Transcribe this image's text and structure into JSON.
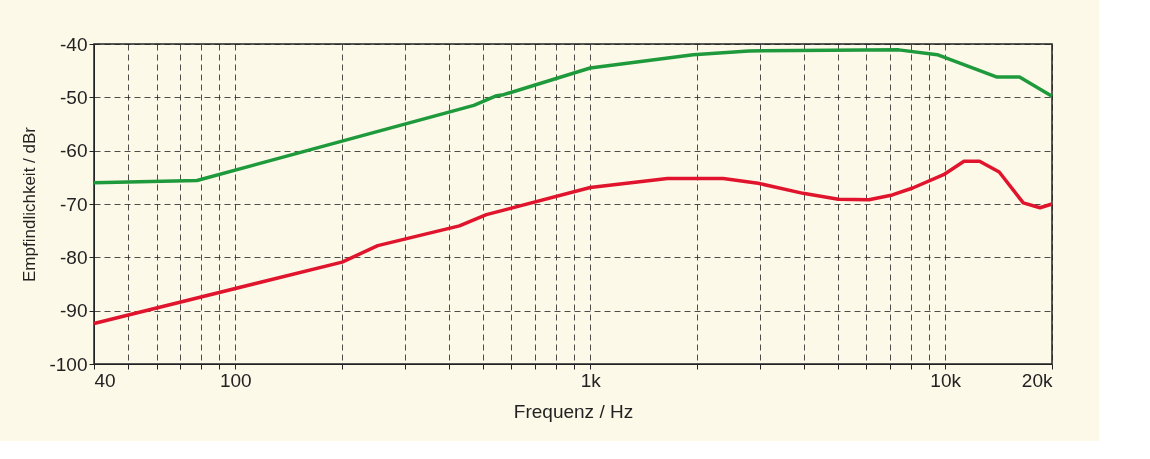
{
  "chart_data": {
    "type": "line",
    "xlabel": "Frequenz / Hz",
    "ylabel": "Empfindlichkeit / dBr",
    "log": "x",
    "xlim": [
      40,
      20000
    ],
    "ylim": [
      -100,
      -40
    ],
    "xticks": [
      40,
      {
        "value": 50,
        "label": null
      },
      {
        "value": 60,
        "label": null
      },
      {
        "value": 70,
        "label": null
      },
      {
        "value": 80,
        "label": null
      },
      {
        "value": 90,
        "label": null
      },
      100,
      {
        "value": 200,
        "label": null
      },
      {
        "value": 300,
        "label": null
      },
      {
        "value": 400,
        "label": null
      },
      {
        "value": 500,
        "label": null
      },
      {
        "value": 600,
        "label": null
      },
      {
        "value": 700,
        "label": null
      },
      {
        "value": 800,
        "label": null
      },
      {
        "value": 900,
        "label": null
      },
      {
        "value": 1000,
        "label": "1k"
      },
      {
        "value": 2000,
        "label": null
      },
      {
        "value": 3000,
        "label": null
      },
      {
        "value": 4000,
        "label": null
      },
      {
        "value": 5000,
        "label": null
      },
      {
        "value": 6000,
        "label": null
      },
      {
        "value": 7000,
        "label": null
      },
      {
        "value": 8000,
        "label": null
      },
      {
        "value": 9000,
        "label": null
      },
      {
        "value": 10000,
        "label": "10k"
      },
      {
        "value": 20000,
        "label": "20k"
      }
    ],
    "yticks": [
      -40,
      -50,
      -60,
      -70,
      -80,
      -90,
      -100
    ],
    "grid": true,
    "marker": "none",
    "series": [
      {
        "color": "#1e9a3c",
        "x": [
          40,
          78,
          470,
          545,
          570,
          1000,
          1950,
          2800,
          7400,
          9500,
          14000,
          16200,
          20000
        ],
        "values": [
          -66,
          -65.6,
          -51.5,
          -49.7,
          -49.5,
          -44.5,
          -42,
          -41.3,
          -41.1,
          -42,
          -46.2,
          -46.2,
          -49.8
        ]
      },
      {
        "color": "#e0142c",
        "x": [
          40,
          200,
          252,
          428,
          510,
          1000,
          1650,
          2370,
          2970,
          3980,
          5000,
          6100,
          7100,
          8100,
          9900,
          11300,
          12500,
          14200,
          16600,
          18500,
          20000
        ],
        "values": [
          -92.4,
          -80.9,
          -77.8,
          -74.1,
          -72,
          -66.9,
          -65.2,
          -65.2,
          -66.1,
          -68,
          -69.1,
          -69.2,
          -68.3,
          -67,
          -64.5,
          -62,
          -62,
          -64,
          -69.8,
          -70.7,
          -70
        ]
      }
    ]
  }
}
